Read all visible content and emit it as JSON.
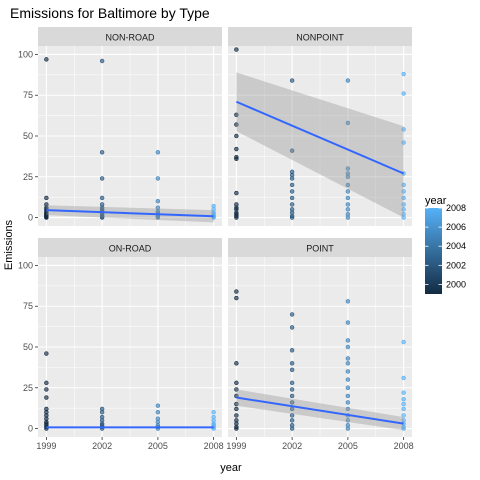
{
  "chart_data": {
    "type": "scatter",
    "title": "Emissions for Baltimore by Type",
    "xlabel": "year",
    "ylabel": "Emissions",
    "x_ticks": [
      1999,
      2002,
      2005,
      2008
    ],
    "y_ticks": [
      0,
      25,
      50,
      75,
      100
    ],
    "xlim": [
      1999,
      2008
    ],
    "ylim": [
      0,
      100
    ],
    "grid": true,
    "legend": {
      "title": "year",
      "ticks": [
        2008,
        2006,
        2004,
        2002,
        2000
      ],
      "range": [
        1999,
        2008
      ],
      "color_low": "#132B43",
      "color_high": "#56B1F7",
      "placement": "right"
    },
    "colors": {
      "panel_bg": "#EBEBEB",
      "strip_bg": "#D9D9D9",
      "grid": "#FFFFFF",
      "trend_line": "#3366FF",
      "ribbon": "#999999"
    },
    "panels": [
      {
        "name": "NON-ROAD",
        "points": [
          {
            "x": 1999,
            "y": 97
          },
          {
            "x": 1999,
            "y": 12
          },
          {
            "x": 1999,
            "y": 8
          },
          {
            "x": 1999,
            "y": 6
          },
          {
            "x": 1999,
            "y": 5
          },
          {
            "x": 1999,
            "y": 4
          },
          {
            "x": 1999,
            "y": 3
          },
          {
            "x": 1999,
            "y": 2.5
          },
          {
            "x": 1999,
            "y": 2
          },
          {
            "x": 1999,
            "y": 1.5
          },
          {
            "x": 1999,
            "y": 1
          },
          {
            "x": 1999,
            "y": 0.5
          },
          {
            "x": 1999,
            "y": 0.2
          },
          {
            "x": 1999,
            "y": 0
          },
          {
            "x": 2002,
            "y": 96
          },
          {
            "x": 2002,
            "y": 40
          },
          {
            "x": 2002,
            "y": 24
          },
          {
            "x": 2002,
            "y": 12
          },
          {
            "x": 2002,
            "y": 8
          },
          {
            "x": 2002,
            "y": 6
          },
          {
            "x": 2002,
            "y": 5
          },
          {
            "x": 2002,
            "y": 4
          },
          {
            "x": 2002,
            "y": 3
          },
          {
            "x": 2002,
            "y": 2
          },
          {
            "x": 2002,
            "y": 1
          },
          {
            "x": 2002,
            "y": 0.5
          },
          {
            "x": 2002,
            "y": 0
          },
          {
            "x": 2005,
            "y": 40
          },
          {
            "x": 2005,
            "y": 24
          },
          {
            "x": 2005,
            "y": 10
          },
          {
            "x": 2005,
            "y": 6
          },
          {
            "x": 2005,
            "y": 4
          },
          {
            "x": 2005,
            "y": 3
          },
          {
            "x": 2005,
            "y": 2
          },
          {
            "x": 2005,
            "y": 1
          },
          {
            "x": 2005,
            "y": 0.5
          },
          {
            "x": 2005,
            "y": 0
          },
          {
            "x": 2008,
            "y": 7
          },
          {
            "x": 2008,
            "y": 5
          },
          {
            "x": 2008,
            "y": 3
          },
          {
            "x": 2008,
            "y": 2
          },
          {
            "x": 2008,
            "y": 1
          },
          {
            "x": 2008,
            "y": 0.5
          },
          {
            "x": 2008,
            "y": 0
          }
        ],
        "trend": {
          "x": [
            1999,
            2008
          ],
          "y": [
            4.5,
            0.8
          ]
        },
        "ribbon": {
          "x": [
            1999,
            2008
          ],
          "lower": [
            1.5,
            -3
          ],
          "upper": [
            7.5,
            4.5
          ]
        }
      },
      {
        "name": "NONPOINT",
        "points": [
          {
            "x": 1999,
            "y": 103
          },
          {
            "x": 1999,
            "y": 63
          },
          {
            "x": 1999,
            "y": 57
          },
          {
            "x": 1999,
            "y": 50
          },
          {
            "x": 1999,
            "y": 42
          },
          {
            "x": 1999,
            "y": 37
          },
          {
            "x": 1999,
            "y": 36
          },
          {
            "x": 1999,
            "y": 15
          },
          {
            "x": 1999,
            "y": 8
          },
          {
            "x": 1999,
            "y": 6
          },
          {
            "x": 1999,
            "y": 5
          },
          {
            "x": 1999,
            "y": 3
          },
          {
            "x": 1999,
            "y": 2
          },
          {
            "x": 1999,
            "y": 1
          },
          {
            "x": 1999,
            "y": 0
          },
          {
            "x": 2002,
            "y": 84
          },
          {
            "x": 2002,
            "y": 41
          },
          {
            "x": 2002,
            "y": 28
          },
          {
            "x": 2002,
            "y": 26
          },
          {
            "x": 2002,
            "y": 24
          },
          {
            "x": 2002,
            "y": 20
          },
          {
            "x": 2002,
            "y": 16
          },
          {
            "x": 2002,
            "y": 12
          },
          {
            "x": 2002,
            "y": 8
          },
          {
            "x": 2002,
            "y": 5
          },
          {
            "x": 2002,
            "y": 3
          },
          {
            "x": 2002,
            "y": 1
          },
          {
            "x": 2002,
            "y": 0
          },
          {
            "x": 2005,
            "y": 84
          },
          {
            "x": 2005,
            "y": 58
          },
          {
            "x": 2005,
            "y": 30
          },
          {
            "x": 2005,
            "y": 27
          },
          {
            "x": 2005,
            "y": 25
          },
          {
            "x": 2005,
            "y": 20
          },
          {
            "x": 2005,
            "y": 16
          },
          {
            "x": 2005,
            "y": 12
          },
          {
            "x": 2005,
            "y": 8
          },
          {
            "x": 2005,
            "y": 5
          },
          {
            "x": 2005,
            "y": 2
          },
          {
            "x": 2005,
            "y": 0
          },
          {
            "x": 2008,
            "y": 88
          },
          {
            "x": 2008,
            "y": 76
          },
          {
            "x": 2008,
            "y": 54
          },
          {
            "x": 2008,
            "y": 46
          },
          {
            "x": 2008,
            "y": 27
          },
          {
            "x": 2008,
            "y": 20
          },
          {
            "x": 2008,
            "y": 16
          },
          {
            "x": 2008,
            "y": 12
          },
          {
            "x": 2008,
            "y": 8
          },
          {
            "x": 2008,
            "y": 5
          },
          {
            "x": 2008,
            "y": 2
          },
          {
            "x": 2008,
            "y": 0
          }
        ],
        "trend": {
          "x": [
            1999,
            2008
          ],
          "y": [
            71,
            27
          ]
        },
        "ribbon": {
          "x": [
            1999,
            2008
          ],
          "lower": [
            53,
            0
          ],
          "upper": [
            89,
            56
          ]
        }
      },
      {
        "name": "ON-ROAD",
        "points": [
          {
            "x": 1999,
            "y": 46
          },
          {
            "x": 1999,
            "y": 28
          },
          {
            "x": 1999,
            "y": 24
          },
          {
            "x": 1999,
            "y": 19
          },
          {
            "x": 1999,
            "y": 12
          },
          {
            "x": 1999,
            "y": 10
          },
          {
            "x": 1999,
            "y": 8
          },
          {
            "x": 1999,
            "y": 6
          },
          {
            "x": 1999,
            "y": 4
          },
          {
            "x": 1999,
            "y": 3
          },
          {
            "x": 1999,
            "y": 2
          },
          {
            "x": 1999,
            "y": 1
          },
          {
            "x": 1999,
            "y": 0
          },
          {
            "x": 2002,
            "y": 12
          },
          {
            "x": 2002,
            "y": 10
          },
          {
            "x": 2002,
            "y": 7
          },
          {
            "x": 2002,
            "y": 5
          },
          {
            "x": 2002,
            "y": 3
          },
          {
            "x": 2002,
            "y": 2
          },
          {
            "x": 2002,
            "y": 1
          },
          {
            "x": 2002,
            "y": 0
          },
          {
            "x": 2005,
            "y": 14
          },
          {
            "x": 2005,
            "y": 10
          },
          {
            "x": 2005,
            "y": 6
          },
          {
            "x": 2005,
            "y": 4
          },
          {
            "x": 2005,
            "y": 2
          },
          {
            "x": 2005,
            "y": 1
          },
          {
            "x": 2005,
            "y": 0
          },
          {
            "x": 2008,
            "y": 10
          },
          {
            "x": 2008,
            "y": 7
          },
          {
            "x": 2008,
            "y": 5
          },
          {
            "x": 2008,
            "y": 3
          },
          {
            "x": 2008,
            "y": 2
          },
          {
            "x": 2008,
            "y": 1
          },
          {
            "x": 2008,
            "y": 0
          }
        ],
        "trend": {
          "x": [
            1999,
            2008
          ],
          "y": [
            0.7,
            0.7
          ]
        },
        "ribbon": {
          "x": [
            1999,
            2008
          ],
          "lower": [
            0.2,
            0.2
          ],
          "upper": [
            1.2,
            1.2
          ]
        }
      },
      {
        "name": "POINT",
        "points": [
          {
            "x": 1999,
            "y": 84
          },
          {
            "x": 1999,
            "y": 80
          },
          {
            "x": 1999,
            "y": 40
          },
          {
            "x": 1999,
            "y": 28
          },
          {
            "x": 1999,
            "y": 24
          },
          {
            "x": 1999,
            "y": 20
          },
          {
            "x": 1999,
            "y": 15
          },
          {
            "x": 1999,
            "y": 12
          },
          {
            "x": 1999,
            "y": 8
          },
          {
            "x": 1999,
            "y": 5
          },
          {
            "x": 1999,
            "y": 3
          },
          {
            "x": 1999,
            "y": 1
          },
          {
            "x": 1999,
            "y": 0
          },
          {
            "x": 2002,
            "y": 70
          },
          {
            "x": 2002,
            "y": 62
          },
          {
            "x": 2002,
            "y": 48
          },
          {
            "x": 2002,
            "y": 40
          },
          {
            "x": 2002,
            "y": 36
          },
          {
            "x": 2002,
            "y": 28
          },
          {
            "x": 2002,
            "y": 24
          },
          {
            "x": 2002,
            "y": 20
          },
          {
            "x": 2002,
            "y": 16
          },
          {
            "x": 2002,
            "y": 12
          },
          {
            "x": 2002,
            "y": 8
          },
          {
            "x": 2002,
            "y": 5
          },
          {
            "x": 2002,
            "y": 2
          },
          {
            "x": 2002,
            "y": 0
          },
          {
            "x": 2005,
            "y": 78
          },
          {
            "x": 2005,
            "y": 65
          },
          {
            "x": 2005,
            "y": 54
          },
          {
            "x": 2005,
            "y": 50
          },
          {
            "x": 2005,
            "y": 43
          },
          {
            "x": 2005,
            "y": 40
          },
          {
            "x": 2005,
            "y": 35
          },
          {
            "x": 2005,
            "y": 30
          },
          {
            "x": 2005,
            "y": 25
          },
          {
            "x": 2005,
            "y": 20
          },
          {
            "x": 2005,
            "y": 16
          },
          {
            "x": 2005,
            "y": 12
          },
          {
            "x": 2005,
            "y": 8
          },
          {
            "x": 2005,
            "y": 5
          },
          {
            "x": 2005,
            "y": 2
          },
          {
            "x": 2005,
            "y": 0
          },
          {
            "x": 2008,
            "y": 53
          },
          {
            "x": 2008,
            "y": 31
          },
          {
            "x": 2008,
            "y": 22
          },
          {
            "x": 2008,
            "y": 18
          },
          {
            "x": 2008,
            "y": 15
          },
          {
            "x": 2008,
            "y": 12
          },
          {
            "x": 2008,
            "y": 8
          },
          {
            "x": 2008,
            "y": 5
          },
          {
            "x": 2008,
            "y": 3
          },
          {
            "x": 2008,
            "y": 1
          },
          {
            "x": 2008,
            "y": 0
          }
        ],
        "trend": {
          "x": [
            1999,
            2008
          ],
          "y": [
            19,
            3
          ]
        },
        "ribbon": {
          "x": [
            1999,
            2008
          ],
          "lower": [
            14,
            -1
          ],
          "upper": [
            24,
            7
          ]
        }
      }
    ]
  }
}
